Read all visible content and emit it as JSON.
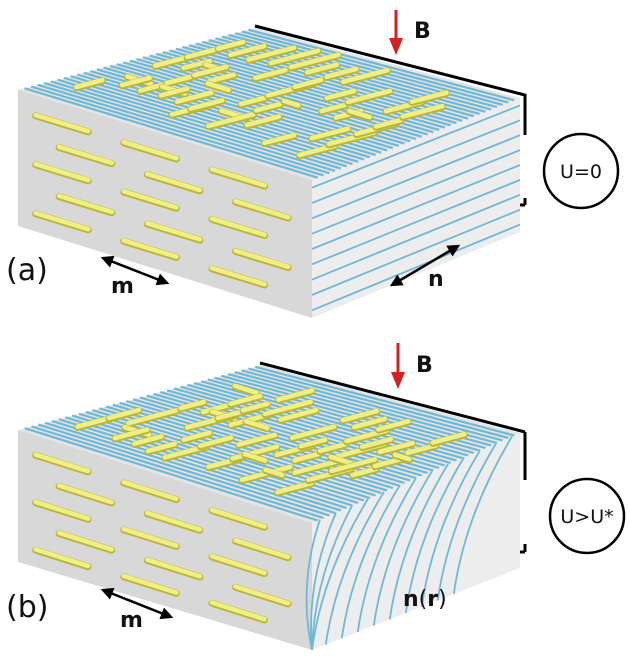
{
  "panels": [
    {
      "id": "a",
      "label": "(a)",
      "field_label": "B",
      "meter_label": "U=0",
      "easy_axis_label": "m",
      "director_label": "n",
      "director_label_arg": "",
      "distorted": false
    },
    {
      "id": "b",
      "label": "(b)",
      "field_label": "B",
      "meter_label": "U>U*",
      "easy_axis_label": "m",
      "director_label": "n",
      "director_label_arg": "r",
      "distorted": true
    }
  ],
  "colors": {
    "slab_top": "#e3e3e3",
    "slab_front": "#d9d9d9",
    "slab_side": "#ececec",
    "lc_fiber": "#6fb8d6",
    "magnetic_rod": "#f0ef86",
    "magnetic_rod_edge": "#b9b63a",
    "field_arrow": "#d62020",
    "wire": "#000000"
  },
  "icons": [
    "field-arrow-icon",
    "voltmeter-icon",
    "double-arrow-icon"
  ]
}
